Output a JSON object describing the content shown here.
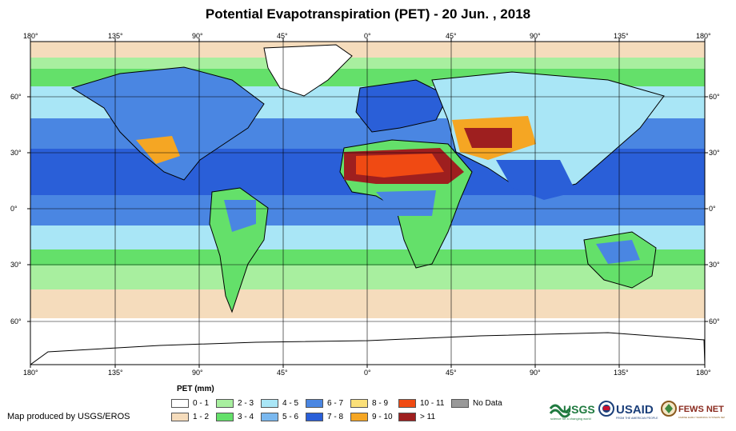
{
  "title": "Potential Evapotranspiration (PET) - 20 Jun. , 2018",
  "longitude_labels": [
    "180°",
    "135°",
    "90°",
    "45°",
    "0°",
    "45°",
    "90°",
    "135°",
    "180°"
  ],
  "latitude_labels": [
    "60°",
    "30°",
    "0°",
    "30°",
    "60°"
  ],
  "legend": {
    "title": "PET (mm)",
    "items": [
      {
        "label": "0 - 1",
        "color": "#ffffff"
      },
      {
        "label": "1 - 2",
        "color": "#f5dcbc"
      },
      {
        "label": "2 - 3",
        "color": "#a8ef9f"
      },
      {
        "label": "3 - 4",
        "color": "#64e06a"
      },
      {
        "label": "4 - 5",
        "color": "#a9e6f6"
      },
      {
        "label": "5 - 6",
        "color": "#7ab8ef"
      },
      {
        "label": "6 - 7",
        "color": "#4a86e2"
      },
      {
        "label": "7 - 8",
        "color": "#2a5fd8"
      },
      {
        "label": "8 - 9",
        "color": "#fbe079"
      },
      {
        "label": "9 - 10",
        "color": "#f5a623"
      },
      {
        "label": "10 - 11",
        "color": "#f04a13"
      },
      {
        "label": "> 11",
        "color": "#9e1f1f"
      },
      {
        "label": "No Data",
        "color": "#999999"
      }
    ]
  },
  "credit": "Map produced by USGS/EROS",
  "logos": {
    "usgs": {
      "name": "USGS",
      "tagline": "science for a changing world"
    },
    "usaid": {
      "name": "USAID",
      "tagline": "FROM THE AMERICAN PEOPLE"
    },
    "fews": {
      "name": "FEWS NET",
      "tagline": "FAMINE EARLY WARNING SYSTEMS NETWORK"
    }
  }
}
